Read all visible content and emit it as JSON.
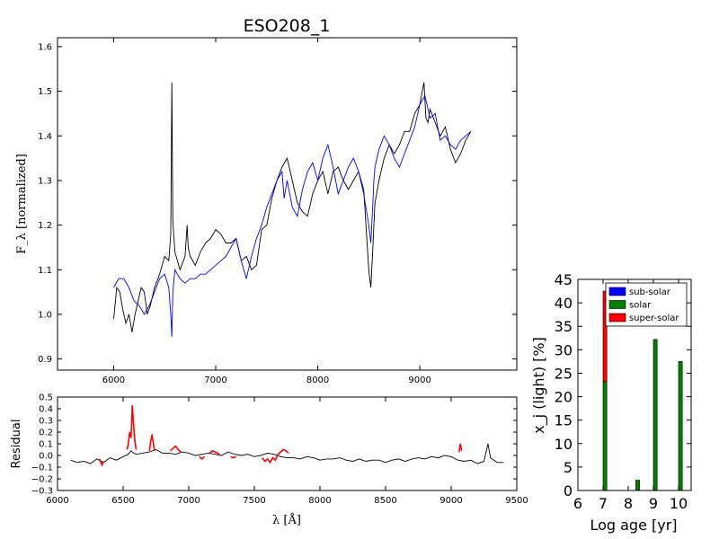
{
  "chart_data": [
    {
      "id": "spectrum",
      "type": "line",
      "title": "ESO208_1",
      "xlabel": "",
      "ylabel": "F_λ [normalized]",
      "xlim": [
        5450,
        9950
      ],
      "ylim": [
        0.875,
        1.62
      ],
      "xticks": [
        "6000",
        "7000",
        "8000",
        "9000"
      ],
      "yticks": [
        "0.9",
        "1.0",
        "1.1",
        "1.2",
        "1.3",
        "1.4",
        "1.5",
        "1.6"
      ],
      "series": [
        {
          "color": "#000000",
          "x": [
            6000,
            6030,
            6060,
            6090,
            6120,
            6150,
            6180,
            6210,
            6240,
            6270,
            6300,
            6330,
            6360,
            6400,
            6450,
            6500,
            6540,
            6560,
            6570,
            6580,
            6600,
            6650,
            6700,
            6720,
            6730,
            6750,
            6800,
            6850,
            6900,
            6950,
            7000,
            7050,
            7100,
            7150,
            7200,
            7250,
            7300,
            7350,
            7400,
            7450,
            7500,
            7550,
            7600,
            7650,
            7700,
            7720,
            7750,
            7800,
            7850,
            7900,
            7950,
            8000,
            8050,
            8100,
            8150,
            8200,
            8250,
            8300,
            8350,
            8400,
            8450,
            8500,
            8520,
            8540,
            8550,
            8560,
            8600,
            8650,
            8700,
            8750,
            8800,
            8850,
            8900,
            8950,
            9000,
            9040,
            9060,
            9080,
            9100,
            9150,
            9200,
            9250,
            9300,
            9350,
            9400,
            9450,
            9500
          ],
          "y": [
            0.99,
            1.06,
            1.05,
            1.01,
            0.98,
            1.0,
            0.96,
            1.0,
            1.03,
            1.06,
            1.05,
            1.0,
            1.02,
            1.06,
            1.09,
            1.13,
            1.12,
            1.18,
            1.52,
            1.21,
            1.14,
            1.1,
            1.13,
            1.2,
            1.15,
            1.13,
            1.11,
            1.14,
            1.16,
            1.17,
            1.19,
            1.18,
            1.16,
            1.16,
            1.17,
            1.12,
            1.13,
            1.1,
            1.11,
            1.19,
            1.2,
            1.26,
            1.3,
            1.33,
            1.35,
            1.33,
            1.3,
            1.25,
            1.23,
            1.22,
            1.27,
            1.3,
            1.32,
            1.27,
            1.32,
            1.33,
            1.3,
            1.28,
            1.3,
            1.32,
            1.28,
            1.1,
            1.06,
            1.15,
            1.2,
            1.25,
            1.3,
            1.35,
            1.38,
            1.36,
            1.38,
            1.41,
            1.41,
            1.45,
            1.47,
            1.52,
            1.44,
            1.43,
            1.46,
            1.43,
            1.4,
            1.42,
            1.37,
            1.34,
            1.36,
            1.39,
            1.41
          ]
        },
        {
          "color": "#0000ff",
          "x": [
            6000,
            6050,
            6100,
            6150,
            6200,
            6250,
            6300,
            6350,
            6400,
            6450,
            6500,
            6540,
            6560,
            6570,
            6580,
            6600,
            6650,
            6700,
            6750,
            6800,
            6850,
            6900,
            6950,
            7000,
            7050,
            7100,
            7150,
            7200,
            7250,
            7300,
            7350,
            7400,
            7450,
            7500,
            7550,
            7600,
            7650,
            7670,
            7700,
            7750,
            7800,
            7850,
            7900,
            7950,
            8000,
            8050,
            8100,
            8150,
            8200,
            8250,
            8300,
            8350,
            8400,
            8450,
            8500,
            8520,
            8540,
            8550,
            8560,
            8600,
            8650,
            8700,
            8750,
            8800,
            8850,
            8900,
            8950,
            9000,
            9050,
            9100,
            9150,
            9200,
            9250,
            9300,
            9350,
            9400,
            9450,
            9500
          ],
          "y": [
            1.06,
            1.08,
            1.08,
            1.06,
            1.03,
            1.02,
            1.0,
            1.02,
            1.05,
            1.08,
            1.09,
            1.06,
            1.0,
            0.95,
            1.05,
            1.1,
            1.08,
            1.07,
            1.08,
            1.08,
            1.09,
            1.09,
            1.1,
            1.11,
            1.12,
            1.13,
            1.15,
            1.17,
            1.12,
            1.08,
            1.13,
            1.17,
            1.2,
            1.24,
            1.27,
            1.3,
            1.32,
            1.26,
            1.3,
            1.24,
            1.22,
            1.28,
            1.32,
            1.34,
            1.3,
            1.35,
            1.38,
            1.33,
            1.27,
            1.3,
            1.33,
            1.35,
            1.32,
            1.27,
            1.2,
            1.16,
            1.25,
            1.3,
            1.33,
            1.37,
            1.4,
            1.38,
            1.35,
            1.33,
            1.36,
            1.39,
            1.42,
            1.47,
            1.49,
            1.44,
            1.45,
            1.39,
            1.4,
            1.38,
            1.37,
            1.39,
            1.4,
            1.41
          ]
        }
      ]
    },
    {
      "id": "residual",
      "type": "line",
      "xlabel": "λ [Å]",
      "ylabel": "Residual",
      "xlim": [
        6000,
        9500
      ],
      "ylim": [
        -0.3,
        0.5
      ],
      "xticks": [
        "6000",
        "6500",
        "7000",
        "7500",
        "8000",
        "8500",
        "9000",
        "9500"
      ],
      "yticks": [
        "−0.3",
        "−0.2",
        "−0.1",
        "0.0",
        "0.1",
        "0.2",
        "0.3",
        "0.4",
        "0.5"
      ],
      "series": [
        {
          "color": "#000000",
          "x": [
            6100,
            6150,
            6200,
            6250,
            6300,
            6350,
            6400,
            6450,
            6500,
            6540,
            6560,
            6580,
            6600,
            6650,
            6700,
            6750,
            6800,
            6850,
            6900,
            6950,
            7000,
            7050,
            7100,
            7150,
            7200,
            7250,
            7300,
            7350,
            7400,
            7450,
            7500,
            7550,
            7600,
            7650,
            7700,
            7750,
            7800,
            7850,
            7900,
            7950,
            8000,
            8050,
            8100,
            8150,
            8200,
            8250,
            8300,
            8350,
            8400,
            8450,
            8500,
            8550,
            8600,
            8650,
            8700,
            8750,
            8800,
            8850,
            8900,
            8950,
            9000,
            9050,
            9100,
            9150,
            9200,
            9250,
            9280,
            9300,
            9350,
            9400
          ],
          "y": [
            -0.04,
            -0.06,
            -0.05,
            -0.07,
            -0.03,
            -0.06,
            -0.02,
            -0.04,
            -0.01,
            0.01,
            0.04,
            0.02,
            0.01,
            0.02,
            0.03,
            0.05,
            0.02,
            0.02,
            0.01,
            0.03,
            0.02,
            0.0,
            0.01,
            0.02,
            0.01,
            0.0,
            0.03,
            0.01,
            0.0,
            0.01,
            -0.01,
            0.0,
            0.02,
            0.01,
            -0.01,
            -0.02,
            -0.02,
            -0.03,
            -0.01,
            -0.02,
            -0.04,
            -0.03,
            -0.03,
            -0.02,
            -0.04,
            -0.05,
            -0.03,
            -0.05,
            -0.04,
            -0.04,
            -0.06,
            -0.04,
            -0.03,
            -0.05,
            -0.03,
            -0.02,
            -0.03,
            -0.01,
            -0.02,
            0.0,
            -0.01,
            -0.04,
            -0.05,
            -0.04,
            -0.07,
            -0.05,
            0.1,
            -0.02,
            -0.06,
            -0.06
          ]
        },
        {
          "color": "#ff0000",
          "segments": [
            {
              "x": [
                6320,
                6330,
                6340,
                6350
              ],
              "y": [
                -0.03,
                -0.06,
                -0.08,
                -0.05
              ]
            },
            {
              "x": [
                6530,
                6540,
                6550,
                6560,
                6570,
                6580,
                6590,
                6600
              ],
              "y": [
                0.05,
                0.1,
                0.2,
                0.15,
                0.43,
                0.25,
                0.12,
                0.05
              ]
            },
            {
              "x": [
                6700,
                6710,
                6720,
                6730,
                6740
              ],
              "y": [
                0.04,
                0.12,
                0.18,
                0.1,
                0.04
              ]
            },
            {
              "x": [
                6860,
                6880,
                6900,
                6920,
                6940
              ],
              "y": [
                0.04,
                0.06,
                0.08,
                0.05,
                0.03
              ]
            },
            {
              "x": [
                7080,
                7100,
                7120
              ],
              "y": [
                -0.01,
                -0.03,
                -0.01
              ]
            },
            {
              "x": [
                7160,
                7180,
                7200,
                7220,
                7240
              ],
              "y": [
                0.02,
                0.04,
                0.03,
                0.02,
                0.0
              ]
            },
            {
              "x": [
                7320,
                7340,
                7360
              ],
              "y": [
                -0.01,
                -0.02,
                -0.01
              ]
            },
            {
              "x": [
                7560,
                7580,
                7600,
                7620,
                7640,
                7660,
                7680,
                7700,
                7720,
                7740,
                7760
              ],
              "y": [
                -0.02,
                -0.05,
                -0.03,
                -0.06,
                -0.02,
                -0.04,
                0.01,
                0.03,
                0.05,
                0.04,
                0.02
              ]
            },
            {
              "x": [
                9060,
                9070,
                9080
              ],
              "y": [
                0.03,
                0.1,
                0.04
              ]
            }
          ]
        }
      ]
    },
    {
      "id": "age-histogram",
      "type": "bar",
      "xlabel": "Log age [yr]",
      "ylabel": "x_j (light) [%]",
      "xlim": [
        6,
        10.5
      ],
      "ylim": [
        0,
        45
      ],
      "xticks": [
        "6",
        "7",
        "8",
        "9",
        "10"
      ],
      "yticks": [
        "0",
        "5",
        "10",
        "15",
        "20",
        "25",
        "30",
        "35",
        "40",
        "45"
      ],
      "legend": {
        "position": "top-right",
        "entries": [
          {
            "label": "sub-solar",
            "color": "#0000ff"
          },
          {
            "label": "solar",
            "color": "#008000"
          },
          {
            "label": "super-solar",
            "color": "#ff0000"
          }
        ]
      },
      "bars": [
        {
          "x": 7.0,
          "solar": 23.2,
          "super_solar": 19.3
        },
        {
          "x": 8.3,
          "solar": 2.2,
          "super_solar": 0
        },
        {
          "x": 9.0,
          "solar": 32.2,
          "super_solar": 0
        },
        {
          "x": 10.0,
          "solar": 27.5,
          "super_solar": 0
        }
      ]
    }
  ]
}
